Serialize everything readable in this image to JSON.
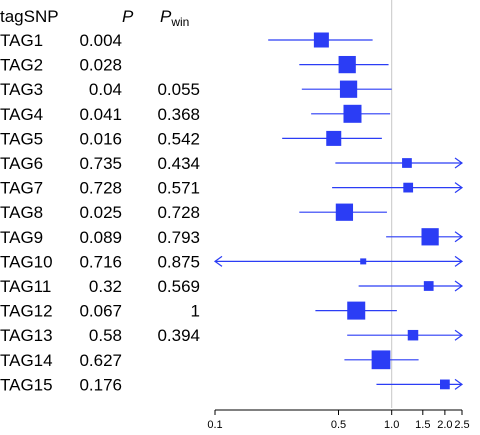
{
  "chart_data": {
    "type": "forest",
    "headers": {
      "tag": "tagSNP",
      "p": "P",
      "pwin": "P",
      "pwin_sub": "win"
    },
    "x_scale": "log",
    "xlim": [
      0.1,
      2.5
    ],
    "x_ticks": [
      0.1,
      0.5,
      1.0,
      1.5,
      2.0,
      2.5
    ],
    "x_tick_labels": [
      "0.1",
      "0.5",
      "1.0",
      "1.5",
      "2.0",
      "2.5"
    ],
    "reference_line": 1.0,
    "colors": {
      "marker": "#2b3df5",
      "reference": "#c8c8c8",
      "axis": "#000000"
    },
    "rows": [
      {
        "tag": "TAG1",
        "p": "0.004",
        "pwin": "",
        "est": 0.4,
        "lo": 0.2,
        "hi": 0.78,
        "size": 1.0,
        "lo_arrow": false,
        "hi_arrow": false
      },
      {
        "tag": "TAG2",
        "p": "0.028",
        "pwin": "",
        "est": 0.56,
        "lo": 0.3,
        "hi": 0.96,
        "size": 1.15,
        "lo_arrow": false,
        "hi_arrow": false
      },
      {
        "tag": "TAG3",
        "p": "0.04",
        "pwin": "0.055",
        "est": 0.57,
        "lo": 0.31,
        "hi": 1.0,
        "size": 1.15,
        "lo_arrow": false,
        "hi_arrow": false
      },
      {
        "tag": "TAG4",
        "p": "0.041",
        "pwin": "0.368",
        "est": 0.6,
        "lo": 0.35,
        "hi": 0.98,
        "size": 1.2,
        "lo_arrow": false,
        "hi_arrow": false
      },
      {
        "tag": "TAG5",
        "p": "0.016",
        "pwin": "0.542",
        "est": 0.47,
        "lo": 0.24,
        "hi": 0.88,
        "size": 1.0,
        "lo_arrow": false,
        "hi_arrow": false
      },
      {
        "tag": "TAG6",
        "p": "0.735",
        "pwin": "0.434",
        "est": 1.22,
        "lo": 0.48,
        "hi": 2.5,
        "size": 0.65,
        "lo_arrow": false,
        "hi_arrow": true
      },
      {
        "tag": "TAG7",
        "p": "0.728",
        "pwin": "0.571",
        "est": 1.24,
        "lo": 0.46,
        "hi": 2.5,
        "size": 0.65,
        "lo_arrow": false,
        "hi_arrow": true
      },
      {
        "tag": "TAG8",
        "p": "0.025",
        "pwin": "0.728",
        "est": 0.54,
        "lo": 0.3,
        "hi": 0.94,
        "size": 1.15,
        "lo_arrow": false,
        "hi_arrow": false
      },
      {
        "tag": "TAG9",
        "p": "0.089",
        "pwin": "0.793",
        "est": 1.65,
        "lo": 0.93,
        "hi": 2.5,
        "size": 1.15,
        "lo_arrow": false,
        "hi_arrow": true
      },
      {
        "tag": "TAG10",
        "p": "0.716",
        "pwin": "0.875",
        "est": 0.69,
        "lo": 0.1,
        "hi": 2.5,
        "size": 0.4,
        "lo_arrow": true,
        "hi_arrow": true
      },
      {
        "tag": "TAG11",
        "p": "0.32",
        "pwin": "0.569",
        "est": 1.62,
        "lo": 0.65,
        "hi": 2.5,
        "size": 0.65,
        "lo_arrow": false,
        "hi_arrow": true
      },
      {
        "tag": "TAG12",
        "p": "0.067",
        "pwin": "1",
        "est": 0.63,
        "lo": 0.37,
        "hi": 1.07,
        "size": 1.2,
        "lo_arrow": false,
        "hi_arrow": false
      },
      {
        "tag": "TAG13",
        "p": "0.58",
        "pwin": "0.394",
        "est": 1.32,
        "lo": 0.56,
        "hi": 2.5,
        "size": 0.7,
        "lo_arrow": false,
        "hi_arrow": true
      },
      {
        "tag": "TAG14",
        "p": "0.627",
        "pwin": "",
        "est": 0.87,
        "lo": 0.54,
        "hi": 1.42,
        "size": 1.25,
        "lo_arrow": false,
        "hi_arrow": false
      },
      {
        "tag": "TAG15",
        "p": "0.176",
        "pwin": "",
        "est": 2.0,
        "lo": 0.82,
        "hi": 2.5,
        "size": 0.65,
        "lo_arrow": false,
        "hi_arrow": true
      }
    ]
  }
}
